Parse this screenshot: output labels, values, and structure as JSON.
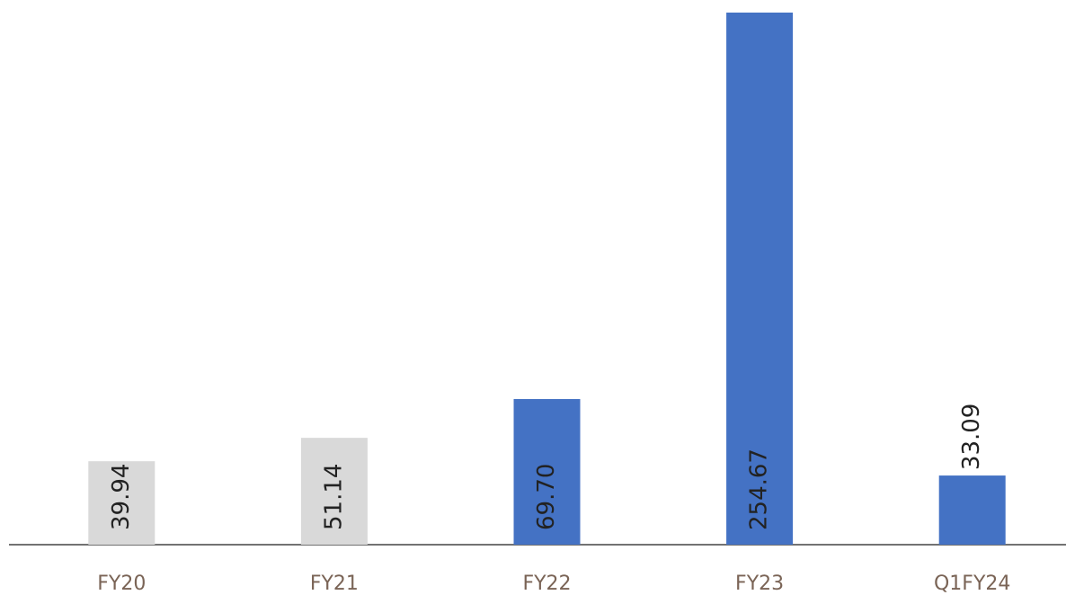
{
  "chart_data": {
    "type": "bar",
    "categories": [
      "FY20",
      "FY21",
      "FY22",
      "FY23",
      "Q1FY24"
    ],
    "values": [
      39.94,
      51.14,
      69.7,
      254.67,
      33.09
    ],
    "value_labels": [
      "39.94",
      "51.14",
      "69.70",
      "254.67",
      "33.09"
    ],
    "colors": [
      "#d9d9d9",
      "#d9d9d9",
      "#4472c4",
      "#4472c4",
      "#4472c4"
    ]
  }
}
